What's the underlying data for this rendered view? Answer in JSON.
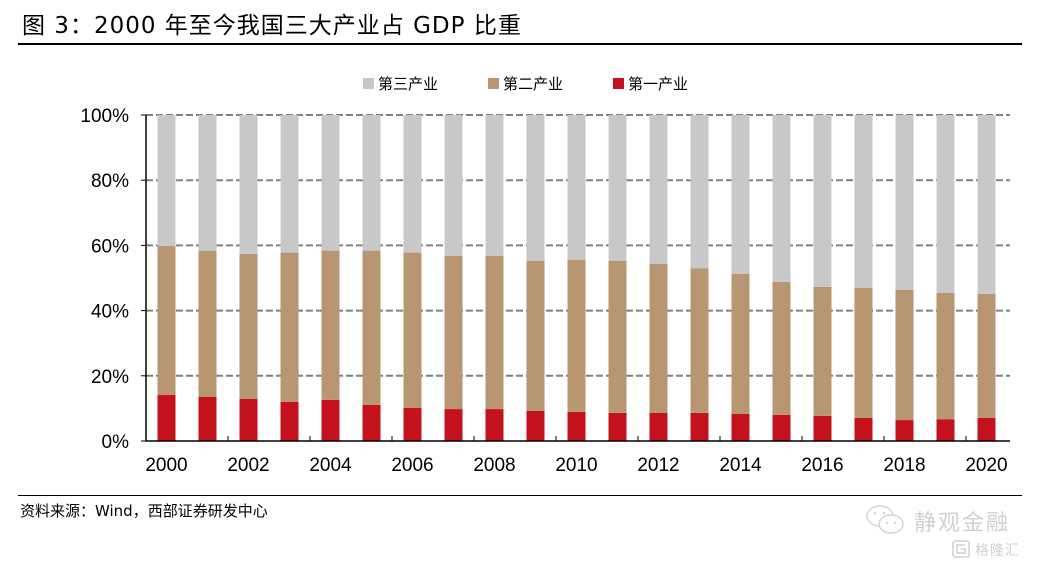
{
  "header": {
    "title": "图 3：2000 年至今我国三大产业占 GDP 比重"
  },
  "footer": {
    "source": "资料来源：Wind，西部证券研发中心"
  },
  "watermarks": {
    "primary_text": "静观金融",
    "primary_icon": "wechat-icon",
    "secondary_text": "格隆汇",
    "secondary_icon": "gelonghui-logo-icon"
  },
  "colors": {
    "tertiary": "#c8c8c8",
    "secondary": "#b89672",
    "primary": "#c4111e",
    "gridline": "#808080",
    "axis": "#000000"
  },
  "chart_data": {
    "type": "bar",
    "stacked": true,
    "title": "",
    "xlabel": "",
    "ylabel": "",
    "ylim": [
      0,
      100
    ],
    "y_ticks": [
      "0%",
      "20%",
      "40%",
      "60%",
      "80%",
      "100%"
    ],
    "y_tick_values": [
      0,
      20,
      40,
      60,
      80,
      100
    ],
    "grid": "horizontal dashed",
    "legend_position": "top-center",
    "categories": [
      "2000",
      "2001",
      "2002",
      "2003",
      "2004",
      "2005",
      "2006",
      "2007",
      "2008",
      "2009",
      "2010",
      "2011",
      "2012",
      "2013",
      "2014",
      "2015",
      "2016",
      "2017",
      "2018",
      "2019",
      "2020"
    ],
    "x_tick_labels": [
      "2000",
      "2002",
      "2004",
      "2006",
      "2008",
      "2010",
      "2012",
      "2014",
      "2016",
      "2018",
      "2020"
    ],
    "series": [
      {
        "name": "第一产业",
        "key": "primary",
        "values": [
          14.1,
          13.5,
          12.9,
          12.0,
          12.6,
          11.1,
          10.2,
          9.8,
          9.8,
          9.2,
          8.9,
          8.6,
          8.6,
          8.6,
          8.3,
          8.0,
          7.7,
          7.1,
          6.4,
          6.7,
          7.1
        ]
      },
      {
        "name": "第二产业",
        "key": "secondary",
        "values": [
          45.7,
          44.9,
          44.5,
          45.8,
          45.8,
          47.3,
          47.6,
          47.0,
          47.0,
          46.1,
          46.7,
          46.7,
          45.7,
          44.3,
          43.0,
          40.8,
          39.6,
          39.9,
          40.0,
          38.7,
          38.0
        ]
      },
      {
        "name": "第三产业",
        "key": "tertiary",
        "values": [
          40.2,
          41.6,
          42.6,
          42.2,
          41.6,
          41.6,
          42.2,
          43.2,
          43.2,
          44.7,
          44.4,
          44.7,
          45.7,
          47.1,
          48.7,
          51.2,
          52.7,
          53.0,
          53.6,
          54.6,
          54.9
        ]
      }
    ],
    "legend": [
      "第三产业",
      "第二产业",
      "第一产业"
    ]
  }
}
